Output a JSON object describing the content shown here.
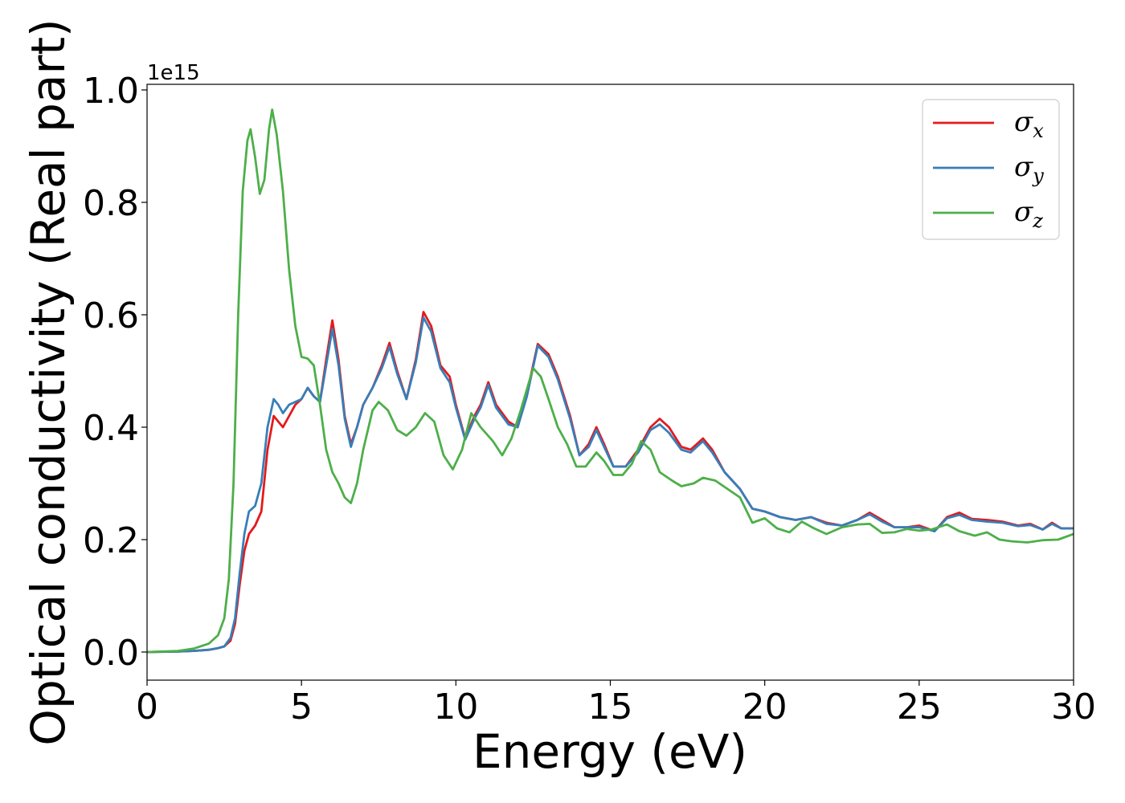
{
  "chart_data": {
    "type": "line",
    "xlabel": "Energy (eV)",
    "ylabel": "Optical conductivity (Real part)",
    "y_offset_label": "1e15",
    "xlim": [
      0,
      30
    ],
    "ylim": [
      -0.05,
      1.01
    ],
    "x_ticks": [
      0,
      5,
      10,
      15,
      20,
      25,
      30
    ],
    "x_tick_labels": [
      "0",
      "5",
      "10",
      "15",
      "20",
      "25",
      "30"
    ],
    "y_ticks": [
      0.0,
      0.2,
      0.4,
      0.6,
      0.8,
      1.0
    ],
    "y_tick_labels": [
      "0.0",
      "0.2",
      "0.4",
      "0.6",
      "0.8",
      "1.0"
    ],
    "grid": false,
    "legend_position": "top-right",
    "series": [
      {
        "name": "σ",
        "subscript": "x",
        "color": "#e41a1c",
        "points": [
          [
            0,
            0
          ],
          [
            1.0,
            0.001
          ],
          [
            1.5,
            0.002
          ],
          [
            2.0,
            0.004
          ],
          [
            2.3,
            0.007
          ],
          [
            2.5,
            0.01
          ],
          [
            2.7,
            0.02
          ],
          [
            2.85,
            0.05
          ],
          [
            3.0,
            0.12
          ],
          [
            3.15,
            0.18
          ],
          [
            3.3,
            0.21
          ],
          [
            3.5,
            0.225
          ],
          [
            3.7,
            0.25
          ],
          [
            3.9,
            0.36
          ],
          [
            4.1,
            0.42
          ],
          [
            4.25,
            0.41
          ],
          [
            4.4,
            0.4
          ],
          [
            4.6,
            0.42
          ],
          [
            4.8,
            0.44
          ],
          [
            5.0,
            0.45
          ],
          [
            5.2,
            0.47
          ],
          [
            5.4,
            0.455
          ],
          [
            5.6,
            0.445
          ],
          [
            5.8,
            0.52
          ],
          [
            6.0,
            0.59
          ],
          [
            6.2,
            0.52
          ],
          [
            6.4,
            0.42
          ],
          [
            6.6,
            0.37
          ],
          [
            6.8,
            0.4
          ],
          [
            7.0,
            0.44
          ],
          [
            7.3,
            0.47
          ],
          [
            7.6,
            0.51
          ],
          [
            7.85,
            0.55
          ],
          [
            8.1,
            0.5
          ],
          [
            8.4,
            0.45
          ],
          [
            8.7,
            0.52
          ],
          [
            8.95,
            0.605
          ],
          [
            9.2,
            0.58
          ],
          [
            9.5,
            0.51
          ],
          [
            9.8,
            0.49
          ],
          [
            10.0,
            0.44
          ],
          [
            10.3,
            0.38
          ],
          [
            10.6,
            0.42
          ],
          [
            10.8,
            0.44
          ],
          [
            11.05,
            0.48
          ],
          [
            11.3,
            0.44
          ],
          [
            11.7,
            0.41
          ],
          [
            12.0,
            0.4
          ],
          [
            12.3,
            0.46
          ],
          [
            12.65,
            0.548
          ],
          [
            13.0,
            0.53
          ],
          [
            13.3,
            0.49
          ],
          [
            13.7,
            0.42
          ],
          [
            14.0,
            0.35
          ],
          [
            14.3,
            0.37
          ],
          [
            14.55,
            0.4
          ],
          [
            14.8,
            0.37
          ],
          [
            15.1,
            0.33
          ],
          [
            15.5,
            0.33
          ],
          [
            15.9,
            0.36
          ],
          [
            16.3,
            0.4
          ],
          [
            16.6,
            0.415
          ],
          [
            16.9,
            0.4
          ],
          [
            17.3,
            0.365
          ],
          [
            17.6,
            0.36
          ],
          [
            18.0,
            0.38
          ],
          [
            18.3,
            0.36
          ],
          [
            18.7,
            0.32
          ],
          [
            19.2,
            0.29
          ],
          [
            19.6,
            0.255
          ],
          [
            20.0,
            0.25
          ],
          [
            20.5,
            0.24
          ],
          [
            21.0,
            0.235
          ],
          [
            21.5,
            0.24
          ],
          [
            22.0,
            0.23
          ],
          [
            22.5,
            0.225
          ],
          [
            23.0,
            0.235
          ],
          [
            23.4,
            0.248
          ],
          [
            23.8,
            0.235
          ],
          [
            24.2,
            0.222
          ],
          [
            24.6,
            0.222
          ],
          [
            25.0,
            0.225
          ],
          [
            25.5,
            0.215
          ],
          [
            25.9,
            0.24
          ],
          [
            26.3,
            0.248
          ],
          [
            26.7,
            0.237
          ],
          [
            27.2,
            0.235
          ],
          [
            27.7,
            0.232
          ],
          [
            28.2,
            0.225
          ],
          [
            28.6,
            0.228
          ],
          [
            29.0,
            0.218
          ],
          [
            29.3,
            0.23
          ],
          [
            29.6,
            0.22
          ],
          [
            30.0,
            0.22
          ]
        ]
      },
      {
        "name": "σ",
        "subscript": "y",
        "color": "#377eb8",
        "points": [
          [
            0,
            0
          ],
          [
            1.0,
            0.001
          ],
          [
            1.5,
            0.002
          ],
          [
            2.0,
            0.004
          ],
          [
            2.3,
            0.007
          ],
          [
            2.5,
            0.01
          ],
          [
            2.7,
            0.025
          ],
          [
            2.85,
            0.06
          ],
          [
            3.0,
            0.14
          ],
          [
            3.15,
            0.21
          ],
          [
            3.3,
            0.25
          ],
          [
            3.5,
            0.26
          ],
          [
            3.7,
            0.3
          ],
          [
            3.9,
            0.4
          ],
          [
            4.1,
            0.45
          ],
          [
            4.25,
            0.44
          ],
          [
            4.4,
            0.425
          ],
          [
            4.6,
            0.44
          ],
          [
            4.8,
            0.445
          ],
          [
            5.0,
            0.45
          ],
          [
            5.2,
            0.47
          ],
          [
            5.4,
            0.455
          ],
          [
            5.6,
            0.445
          ],
          [
            5.8,
            0.51
          ],
          [
            6.0,
            0.575
          ],
          [
            6.2,
            0.51
          ],
          [
            6.4,
            0.415
          ],
          [
            6.6,
            0.365
          ],
          [
            6.8,
            0.4
          ],
          [
            7.0,
            0.44
          ],
          [
            7.3,
            0.47
          ],
          [
            7.6,
            0.505
          ],
          [
            7.85,
            0.543
          ],
          [
            8.1,
            0.495
          ],
          [
            8.4,
            0.45
          ],
          [
            8.7,
            0.515
          ],
          [
            8.95,
            0.595
          ],
          [
            9.2,
            0.57
          ],
          [
            9.5,
            0.505
          ],
          [
            9.8,
            0.48
          ],
          [
            10.0,
            0.435
          ],
          [
            10.3,
            0.378
          ],
          [
            10.6,
            0.415
          ],
          [
            10.8,
            0.435
          ],
          [
            11.05,
            0.475
          ],
          [
            11.3,
            0.435
          ],
          [
            11.7,
            0.405
          ],
          [
            12.0,
            0.4
          ],
          [
            12.3,
            0.455
          ],
          [
            12.65,
            0.545
          ],
          [
            13.0,
            0.525
          ],
          [
            13.3,
            0.485
          ],
          [
            13.7,
            0.415
          ],
          [
            14.0,
            0.35
          ],
          [
            14.3,
            0.365
          ],
          [
            14.55,
            0.395
          ],
          [
            14.8,
            0.365
          ],
          [
            15.1,
            0.33
          ],
          [
            15.5,
            0.33
          ],
          [
            15.9,
            0.355
          ],
          [
            16.3,
            0.395
          ],
          [
            16.6,
            0.405
          ],
          [
            16.9,
            0.39
          ],
          [
            17.3,
            0.36
          ],
          [
            17.6,
            0.355
          ],
          [
            18.0,
            0.375
          ],
          [
            18.3,
            0.355
          ],
          [
            18.7,
            0.32
          ],
          [
            19.2,
            0.29
          ],
          [
            19.6,
            0.255
          ],
          [
            20.0,
            0.25
          ],
          [
            20.5,
            0.24
          ],
          [
            21.0,
            0.235
          ],
          [
            21.5,
            0.24
          ],
          [
            22.0,
            0.228
          ],
          [
            22.5,
            0.225
          ],
          [
            23.0,
            0.235
          ],
          [
            23.4,
            0.245
          ],
          [
            23.8,
            0.232
          ],
          [
            24.2,
            0.222
          ],
          [
            24.6,
            0.222
          ],
          [
            25.0,
            0.222
          ],
          [
            25.5,
            0.215
          ],
          [
            25.9,
            0.238
          ],
          [
            26.3,
            0.244
          ],
          [
            26.7,
            0.235
          ],
          [
            27.2,
            0.232
          ],
          [
            27.7,
            0.23
          ],
          [
            28.2,
            0.224
          ],
          [
            28.6,
            0.226
          ],
          [
            29.0,
            0.218
          ],
          [
            29.3,
            0.228
          ],
          [
            29.6,
            0.22
          ],
          [
            30.0,
            0.22
          ]
        ]
      },
      {
        "name": "σ",
        "subscript": "z",
        "color": "#4daf4a",
        "points": [
          [
            0,
            0
          ],
          [
            1.0,
            0.002
          ],
          [
            1.5,
            0.006
          ],
          [
            2.0,
            0.015
          ],
          [
            2.3,
            0.03
          ],
          [
            2.5,
            0.06
          ],
          [
            2.65,
            0.13
          ],
          [
            2.8,
            0.3
          ],
          [
            2.95,
            0.6
          ],
          [
            3.1,
            0.82
          ],
          [
            3.25,
            0.91
          ],
          [
            3.35,
            0.93
          ],
          [
            3.5,
            0.88
          ],
          [
            3.65,
            0.815
          ],
          [
            3.8,
            0.84
          ],
          [
            3.95,
            0.93
          ],
          [
            4.05,
            0.965
          ],
          [
            4.2,
            0.92
          ],
          [
            4.4,
            0.82
          ],
          [
            4.6,
            0.68
          ],
          [
            4.8,
            0.58
          ],
          [
            5.0,
            0.525
          ],
          [
            5.2,
            0.522
          ],
          [
            5.4,
            0.51
          ],
          [
            5.6,
            0.44
          ],
          [
            5.8,
            0.36
          ],
          [
            6.0,
            0.32
          ],
          [
            6.2,
            0.3
          ],
          [
            6.4,
            0.275
          ],
          [
            6.6,
            0.265
          ],
          [
            6.8,
            0.3
          ],
          [
            7.0,
            0.36
          ],
          [
            7.3,
            0.43
          ],
          [
            7.5,
            0.445
          ],
          [
            7.8,
            0.43
          ],
          [
            8.1,
            0.395
          ],
          [
            8.4,
            0.385
          ],
          [
            8.7,
            0.4
          ],
          [
            9.0,
            0.425
          ],
          [
            9.3,
            0.41
          ],
          [
            9.6,
            0.35
          ],
          [
            9.9,
            0.325
          ],
          [
            10.2,
            0.36
          ],
          [
            10.5,
            0.425
          ],
          [
            10.8,
            0.4
          ],
          [
            11.2,
            0.375
          ],
          [
            11.5,
            0.35
          ],
          [
            11.8,
            0.38
          ],
          [
            12.1,
            0.43
          ],
          [
            12.5,
            0.505
          ],
          [
            12.75,
            0.49
          ],
          [
            13.0,
            0.45
          ],
          [
            13.3,
            0.4
          ],
          [
            13.6,
            0.37
          ],
          [
            13.9,
            0.33
          ],
          [
            14.2,
            0.33
          ],
          [
            14.55,
            0.355
          ],
          [
            14.8,
            0.34
          ],
          [
            15.1,
            0.315
          ],
          [
            15.4,
            0.315
          ],
          [
            15.7,
            0.335
          ],
          [
            16.0,
            0.375
          ],
          [
            16.3,
            0.36
          ],
          [
            16.6,
            0.32
          ],
          [
            17.0,
            0.305
          ],
          [
            17.3,
            0.295
          ],
          [
            17.7,
            0.3
          ],
          [
            18.0,
            0.31
          ],
          [
            18.4,
            0.305
          ],
          [
            18.8,
            0.29
          ],
          [
            19.2,
            0.275
          ],
          [
            19.6,
            0.23
          ],
          [
            20.0,
            0.238
          ],
          [
            20.4,
            0.22
          ],
          [
            20.8,
            0.213
          ],
          [
            21.2,
            0.232
          ],
          [
            21.6,
            0.22
          ],
          [
            22.0,
            0.21
          ],
          [
            22.5,
            0.222
          ],
          [
            23.0,
            0.227
          ],
          [
            23.4,
            0.228
          ],
          [
            23.8,
            0.212
          ],
          [
            24.2,
            0.213
          ],
          [
            24.6,
            0.219
          ],
          [
            25.0,
            0.216
          ],
          [
            25.4,
            0.218
          ],
          [
            25.9,
            0.227
          ],
          [
            26.3,
            0.215
          ],
          [
            26.8,
            0.207
          ],
          [
            27.2,
            0.213
          ],
          [
            27.6,
            0.2
          ],
          [
            28.0,
            0.197
          ],
          [
            28.5,
            0.195
          ],
          [
            29.0,
            0.199
          ],
          [
            29.5,
            0.2
          ],
          [
            30.0,
            0.21
          ]
        ]
      }
    ]
  }
}
